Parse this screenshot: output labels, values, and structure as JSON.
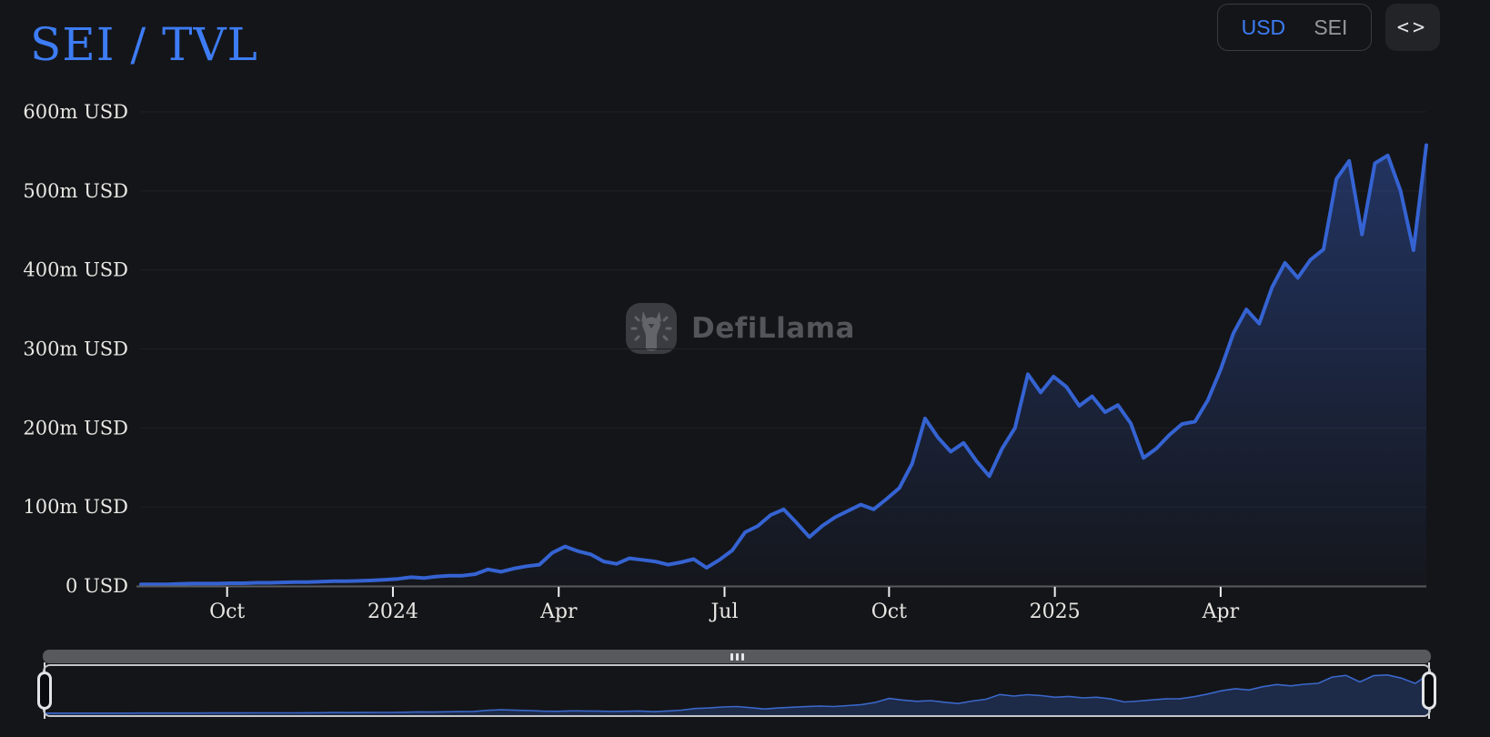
{
  "header": {
    "title": "SEI / TVL",
    "currency_toggle": {
      "options": [
        "USD",
        "SEI"
      ],
      "active": "USD"
    },
    "embed_label": "<>"
  },
  "watermark": {
    "text": "DefiLlama",
    "icon": "defillama-llama-logo"
  },
  "colors": {
    "background": "#141519",
    "accent_blue": "#3d7cf4",
    "line_blue": "#3563d2",
    "area_top": "rgba(56,100,210,0.42)",
    "area_bottom": "rgba(56,100,210,0.02)",
    "grid": "#202126",
    "axis": "#5a5b5f",
    "text_primary": "#e9e7e3",
    "text_muted": "#97989c",
    "panel": "#232428",
    "border": "#3a3b40",
    "watermark_gray": "#54555a",
    "scrollbar_gray": "#58595c",
    "handle_border": "#e3e4e6",
    "minimap_border": "#c6c7ca",
    "minimap_line": "#3a67c9",
    "minimap_fill": "rgba(46,82,160,0.35)"
  },
  "chart_data": {
    "type": "area",
    "title": "SEI / TVL",
    "unit": "USD",
    "grid": true,
    "legend": false,
    "x_range": [
      "Aug 2023",
      "Jul 2025"
    ],
    "ylim_millions": [
      0,
      600
    ],
    "y_ticks": [
      {
        "value": 0,
        "label": "0 USD"
      },
      {
        "value": 100,
        "label": "100m USD"
      },
      {
        "value": 200,
        "label": "200m USD"
      },
      {
        "value": 300,
        "label": "300m USD"
      },
      {
        "value": 400,
        "label": "400m USD"
      },
      {
        "value": 500,
        "label": "500m USD"
      },
      {
        "value": 600,
        "label": "600m USD"
      }
    ],
    "x_ticks": [
      {
        "f": 0.067,
        "label": "Oct"
      },
      {
        "f": 0.196,
        "label": "2024"
      },
      {
        "f": 0.325,
        "label": "Apr"
      },
      {
        "f": 0.454,
        "label": "Jul"
      },
      {
        "f": 0.582,
        "label": "Oct"
      },
      {
        "f": 0.711,
        "label": "2025"
      },
      {
        "f": 0.84,
        "label": "Apr"
      }
    ],
    "values_millions": [
      2,
      2,
      2,
      2.5,
      3,
      3,
      3,
      3.5,
      3.5,
      4,
      4,
      4.5,
      5,
      5,
      5.5,
      6,
      6,
      6.5,
      7,
      8,
      9,
      11,
      10,
      12,
      13,
      13,
      15,
      21,
      18,
      22,
      25,
      27,
      42,
      50,
      44,
      40,
      31,
      28,
      35,
      33,
      31,
      27,
      30,
      34,
      23,
      33,
      45,
      68,
      76,
      90,
      97,
      80,
      62,
      76,
      87,
      95,
      103,
      97,
      110,
      124,
      155,
      212,
      188,
      170,
      181,
      158,
      139,
      174,
      200,
      268,
      245,
      265,
      252,
      228,
      240,
      220,
      229,
      206,
      162,
      174,
      191,
      205,
      208,
      235,
      274,
      320,
      350,
      332,
      378,
      409,
      390,
      413,
      426,
      515,
      538,
      445,
      535,
      545,
      500,
      425,
      558
    ],
    "latest_value_millions": 558
  },
  "timeline": {
    "scrollbar": true,
    "grip_icon": "drag-grip-icon",
    "handles": [
      "range-start",
      "range-end"
    ]
  }
}
